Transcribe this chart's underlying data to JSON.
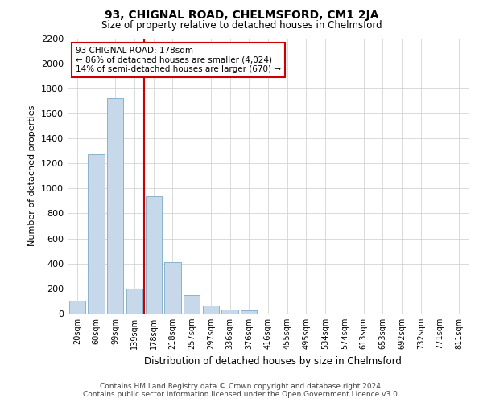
{
  "title": "93, CHIGNAL ROAD, CHELMSFORD, CM1 2JA",
  "subtitle": "Size of property relative to detached houses in Chelmsford",
  "xlabel": "Distribution of detached houses by size in Chelmsford",
  "ylabel": "Number of detached properties",
  "categories": [
    "20sqm",
    "60sqm",
    "99sqm",
    "139sqm",
    "178sqm",
    "218sqm",
    "257sqm",
    "297sqm",
    "336sqm",
    "376sqm",
    "416sqm",
    "455sqm",
    "495sqm",
    "534sqm",
    "574sqm",
    "613sqm",
    "653sqm",
    "692sqm",
    "732sqm",
    "771sqm",
    "811sqm"
  ],
  "values": [
    100,
    1270,
    1720,
    200,
    940,
    410,
    150,
    65,
    35,
    25,
    0,
    0,
    0,
    0,
    0,
    0,
    0,
    0,
    0,
    0,
    0
  ],
  "bar_color": "#c8d8eb",
  "bar_edge_color": "#7aaac8",
  "highlight_index": 4,
  "highlight_color": "#cc0000",
  "annotation_text": "93 CHIGNAL ROAD: 178sqm\n← 86% of detached houses are smaller (4,024)\n14% of semi-detached houses are larger (670) →",
  "annotation_box_color": "#ffffff",
  "annotation_box_edge": "#cc0000",
  "ylim": [
    0,
    2200
  ],
  "yticks": [
    0,
    200,
    400,
    600,
    800,
    1000,
    1200,
    1400,
    1600,
    1800,
    2000,
    2200
  ],
  "footer_line1": "Contains HM Land Registry data © Crown copyright and database right 2024.",
  "footer_line2": "Contains public sector information licensed under the Open Government Licence v3.0.",
  "bg_color": "#ffffff",
  "grid_color": "#cccccc",
  "title_fontsize": 10,
  "subtitle_fontsize": 8.5,
  "ylabel_fontsize": 8,
  "xtick_fontsize": 7,
  "ytick_fontsize": 8,
  "xlabel_fontsize": 8.5,
  "footer_fontsize": 6.5,
  "annot_fontsize": 7.5
}
